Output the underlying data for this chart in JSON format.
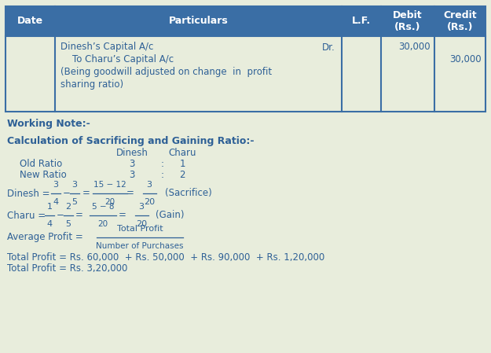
{
  "bg_color": "#e8eddc",
  "header_bg": "#3a6ea5",
  "header_text_color": "#ffffff",
  "body_text_color": "#2e6096",
  "table_border_color": "#3a6ea5",
  "working_note_label": "Working Note:-",
  "calc_ratio_label": "Calculation of Sacrificing and Gaining Ratio:-",
  "journal_line1": "Dinesh’s Capital A/c",
  "journal_dr": "Dr.",
  "journal_line2": "    To Charu’s Capital A/c",
  "journal_line3": "(Being goodwill adjusted on change in profit sharing ratio)",
  "journal_line4": "sharing ratio)",
  "debit_amount": "30,000",
  "credit_amount": "30,000",
  "avg_profit_num": "Total Profit",
  "avg_profit_den": "Number of Purchases",
  "total_profit_line1": "Total Profit = Rs. 60,000  + Rs. 50,000  + Rs. 90,000  + Rs. 1,20,000",
  "total_profit_line2": "Total Profit = Rs. 3,20,000",
  "dinesh_fracs_num": [
    "3",
    "3",
    "15 − 12",
    "3"
  ],
  "dinesh_fracs_den": [
    "4",
    "5",
    "20",
    "20"
  ],
  "charu_fracs_num": [
    "1",
    "2",
    "5 − 8",
    "3"
  ],
  "charu_fracs_den": [
    "4",
    "5",
    "20",
    "20"
  ]
}
